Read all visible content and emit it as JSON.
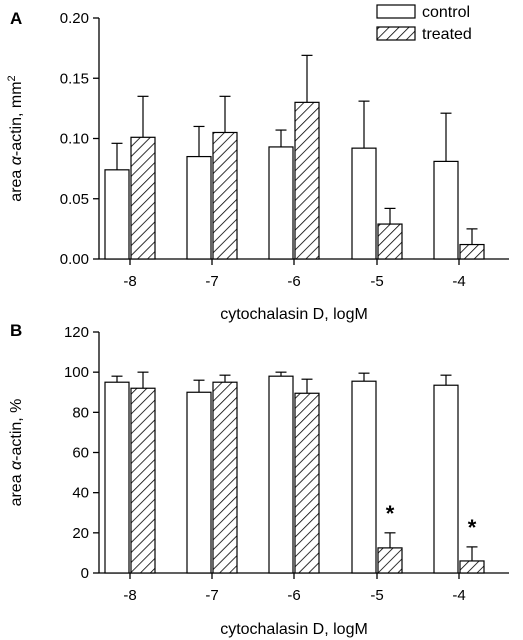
{
  "chart_data": [
    {
      "type": "bar",
      "panel_label": "A",
      "categories": [
        "-8",
        "-7",
        "-6",
        "-5",
        "-4"
      ],
      "xlabel": "cytochalasin D, logM",
      "ylabel_parts": [
        "area ",
        "α",
        "-actin, mm",
        "2"
      ],
      "ylim": [
        0,
        0.2
      ],
      "yticks": [
        0.0,
        0.05,
        0.1,
        0.15,
        0.2
      ],
      "ytick_labels": [
        "0.00",
        "0.05",
        "0.10",
        "0.15",
        "0.20"
      ],
      "legend": {
        "position": "top-right",
        "entries": [
          "control",
          "treated"
        ]
      },
      "grid": false,
      "series": [
        {
          "name": "control",
          "pattern": "open",
          "values": [
            0.074,
            0.085,
            0.093,
            0.092,
            0.081
          ],
          "errors": [
            0.022,
            0.025,
            0.014,
            0.039,
            0.04
          ]
        },
        {
          "name": "treated",
          "pattern": "hatched",
          "values": [
            0.101,
            0.105,
            0.13,
            0.029,
            0.012
          ],
          "errors": [
            0.034,
            0.03,
            0.039,
            0.013,
            0.013
          ]
        }
      ],
      "annotations": []
    },
    {
      "type": "bar",
      "panel_label": "B",
      "categories": [
        "-8",
        "-7",
        "-6",
        "-5",
        "-4"
      ],
      "xlabel": "cytochalasin D, logM",
      "ylabel_parts": [
        "area ",
        "α",
        "-actin, %",
        ""
      ],
      "ylim": [
        0,
        120
      ],
      "yticks": [
        0,
        20,
        40,
        60,
        80,
        100,
        120
      ],
      "ytick_labels": [
        "0",
        "20",
        "40",
        "60",
        "80",
        "100",
        "120"
      ],
      "grid": false,
      "series": [
        {
          "name": "control",
          "pattern": "open",
          "values": [
            95,
            90,
            98,
            95.5,
            93.5
          ],
          "errors": [
            3,
            6,
            2,
            4,
            5
          ]
        },
        {
          "name": "treated",
          "pattern": "hatched",
          "values": [
            92,
            95,
            89.5,
            12.5,
            6
          ],
          "errors": [
            8,
            3.5,
            7,
            7.5,
            7
          ]
        }
      ],
      "annotations": [
        {
          "text": "*",
          "category": "-5",
          "series": "treated"
        },
        {
          "text": "*",
          "category": "-4",
          "series": "treated"
        }
      ]
    }
  ]
}
